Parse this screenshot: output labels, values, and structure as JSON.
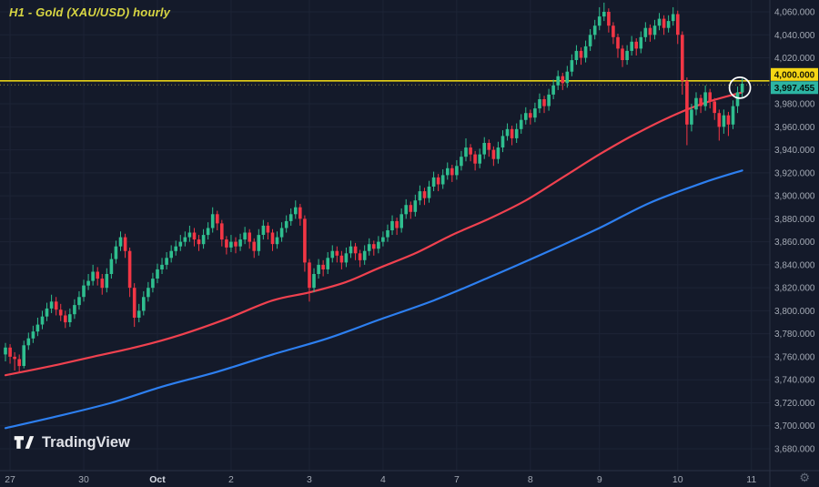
{
  "header": {
    "title": "H1 - Gold (XAU/USD) hourly"
  },
  "watermark": {
    "text": "TradingView"
  },
  "chart_data": {
    "type": "candlestick",
    "title": "H1 - Gold (XAU/USD) hourly",
    "symbol": "Gold (XAU/USD)",
    "timeframe": "H1",
    "last_price": 3997.455,
    "last_price_label": "3,997.455",
    "yellow_level": 4000,
    "yellow_level_label": "4,000.000",
    "price_axis": {
      "max": 4060,
      "min": 3680,
      "step": 20,
      "labels": [
        "4,060.000",
        "4,040.000",
        "4,020.000",
        "4,000.000",
        "3,980.000",
        "3,960.000",
        "3,940.000",
        "3,920.000",
        "3,900.000",
        "3,880.000",
        "3,860.000",
        "3,840.000",
        "3,820.000",
        "3,800.000",
        "3,780.000",
        "3,760.000",
        "3,740.000",
        "3,720.000",
        "3,700.000",
        "3,680.000"
      ]
    },
    "time_axis": {
      "ticks": [
        {
          "i": 1,
          "label": "27"
        },
        {
          "i": 17,
          "label": "30"
        },
        {
          "i": 33,
          "label": "Oct",
          "emph": true
        },
        {
          "i": 49,
          "label": "2"
        },
        {
          "i": 66,
          "label": "3"
        },
        {
          "i": 82,
          "label": "4"
        },
        {
          "i": 98,
          "label": "7"
        },
        {
          "i": 114,
          "label": "8"
        },
        {
          "i": 129,
          "label": "9"
        },
        {
          "i": 146,
          "label": "10"
        },
        {
          "i": 162,
          "label": "11"
        }
      ]
    },
    "candle_format": [
      "open",
      "high",
      "low",
      "close"
    ],
    "candles": [
      [
        3762,
        3772,
        3756,
        3768
      ],
      [
        3768,
        3771,
        3754,
        3760
      ],
      [
        3760,
        3764,
        3748,
        3758
      ],
      [
        3758,
        3762,
        3746,
        3752
      ],
      [
        3752,
        3774,
        3750,
        3770
      ],
      [
        3770,
        3781,
        3766,
        3776
      ],
      [
        3776,
        3787,
        3772,
        3782
      ],
      [
        3782,
        3794,
        3778,
        3788
      ],
      [
        3788,
        3800,
        3784,
        3795
      ],
      [
        3795,
        3807,
        3791,
        3802
      ],
      [
        3802,
        3814,
        3798,
        3808
      ],
      [
        3808,
        3812,
        3796,
        3801
      ],
      [
        3801,
        3806,
        3791,
        3796
      ],
      [
        3796,
        3800,
        3785,
        3790
      ],
      [
        3790,
        3802,
        3786,
        3797
      ],
      [
        3797,
        3810,
        3793,
        3805
      ],
      [
        3805,
        3817,
        3801,
        3812
      ],
      [
        3812,
        3827,
        3808,
        3822
      ],
      [
        3822,
        3832,
        3818,
        3826
      ],
      [
        3826,
        3840,
        3822,
        3834
      ],
      [
        3834,
        3838,
        3822,
        3828
      ],
      [
        3828,
        3832,
        3814,
        3820
      ],
      [
        3820,
        3837,
        3816,
        3832
      ],
      [
        3832,
        3850,
        3828,
        3845
      ],
      [
        3845,
        3861,
        3841,
        3856
      ],
      [
        3856,
        3869,
        3852,
        3864
      ],
      [
        3864,
        3867,
        3846,
        3852
      ],
      [
        3852,
        3855,
        3812,
        3820
      ],
      [
        3820,
        3824,
        3786,
        3794
      ],
      [
        3794,
        3806,
        3790,
        3800
      ],
      [
        3800,
        3817,
        3796,
        3812
      ],
      [
        3812,
        3825,
        3808,
        3820
      ],
      [
        3820,
        3833,
        3816,
        3828
      ],
      [
        3828,
        3841,
        3824,
        3836
      ],
      [
        3836,
        3846,
        3832,
        3840
      ],
      [
        3840,
        3851,
        3836,
        3846
      ],
      [
        3846,
        3857,
        3842,
        3852
      ],
      [
        3852,
        3861,
        3848,
        3856
      ],
      [
        3856,
        3866,
        3852,
        3860
      ],
      [
        3860,
        3869,
        3856,
        3864
      ],
      [
        3864,
        3874,
        3860,
        3868
      ],
      [
        3868,
        3872,
        3856,
        3862
      ],
      [
        3862,
        3866,
        3852,
        3858
      ],
      [
        3858,
        3871,
        3854,
        3866
      ],
      [
        3866,
        3877,
        3862,
        3872
      ],
      [
        3872,
        3890,
        3868,
        3884
      ],
      [
        3884,
        3887,
        3870,
        3876
      ],
      [
        3876,
        3879,
        3856,
        3862
      ],
      [
        3862,
        3865,
        3849,
        3855
      ],
      [
        3855,
        3866,
        3851,
        3860
      ],
      [
        3860,
        3864,
        3850,
        3856
      ],
      [
        3856,
        3867,
        3852,
        3862
      ],
      [
        3862,
        3873,
        3858,
        3868
      ],
      [
        3868,
        3871,
        3854,
        3860
      ],
      [
        3860,
        3863,
        3846,
        3852
      ],
      [
        3852,
        3871,
        3848,
        3866
      ],
      [
        3866,
        3879,
        3862,
        3874
      ],
      [
        3874,
        3877,
        3862,
        3868
      ],
      [
        3868,
        3871,
        3852,
        3858
      ],
      [
        3858,
        3869,
        3854,
        3864
      ],
      [
        3864,
        3877,
        3860,
        3872
      ],
      [
        3872,
        3883,
        3868,
        3878
      ],
      [
        3878,
        3889,
        3874,
        3884
      ],
      [
        3884,
        3896,
        3880,
        3890
      ],
      [
        3890,
        3893,
        3874,
        3880
      ],
      [
        3880,
        3883,
        3834,
        3842
      ],
      [
        3842,
        3845,
        3808,
        3820
      ],
      [
        3820,
        3837,
        3816,
        3832
      ],
      [
        3832,
        3845,
        3828,
        3840
      ],
      [
        3840,
        3844,
        3830,
        3836
      ],
      [
        3836,
        3851,
        3832,
        3846
      ],
      [
        3846,
        3857,
        3842,
        3852
      ],
      [
        3852,
        3856,
        3842,
        3848
      ],
      [
        3848,
        3852,
        3836,
        3842
      ],
      [
        3842,
        3855,
        3838,
        3850
      ],
      [
        3850,
        3861,
        3846,
        3856
      ],
      [
        3856,
        3859,
        3844,
        3850
      ],
      [
        3850,
        3853,
        3838,
        3844
      ],
      [
        3844,
        3857,
        3840,
        3852
      ],
      [
        3852,
        3863,
        3848,
        3858
      ],
      [
        3858,
        3861,
        3848,
        3854
      ],
      [
        3854,
        3865,
        3850,
        3860
      ],
      [
        3860,
        3869,
        3856,
        3864
      ],
      [
        3864,
        3875,
        3860,
        3870
      ],
      [
        3870,
        3883,
        3866,
        3878
      ],
      [
        3878,
        3881,
        3866,
        3872
      ],
      [
        3872,
        3889,
        3868,
        3884
      ],
      [
        3884,
        3897,
        3880,
        3892
      ],
      [
        3892,
        3895,
        3880,
        3886
      ],
      [
        3886,
        3901,
        3882,
        3896
      ],
      [
        3896,
        3909,
        3892,
        3904
      ],
      [
        3904,
        3907,
        3892,
        3898
      ],
      [
        3898,
        3913,
        3894,
        3908
      ],
      [
        3908,
        3921,
        3904,
        3916
      ],
      [
        3916,
        3919,
        3904,
        3910
      ],
      [
        3910,
        3923,
        3906,
        3918
      ],
      [
        3918,
        3929,
        3914,
        3924
      ],
      [
        3924,
        3927,
        3912,
        3918
      ],
      [
        3918,
        3931,
        3914,
        3926
      ],
      [
        3926,
        3939,
        3922,
        3934
      ],
      [
        3934,
        3950,
        3930,
        3942
      ],
      [
        3942,
        3945,
        3930,
        3936
      ],
      [
        3936,
        3939,
        3922,
        3928
      ],
      [
        3928,
        3941,
        3924,
        3936
      ],
      [
        3936,
        3951,
        3932,
        3946
      ],
      [
        3946,
        3949,
        3934,
        3940
      ],
      [
        3940,
        3943,
        3926,
        3932
      ],
      [
        3932,
        3947,
        3928,
        3942
      ],
      [
        3942,
        3957,
        3938,
        3952
      ],
      [
        3952,
        3963,
        3948,
        3958
      ],
      [
        3958,
        3961,
        3944,
        3950
      ],
      [
        3950,
        3963,
        3946,
        3958
      ],
      [
        3958,
        3971,
        3954,
        3966
      ],
      [
        3966,
        3977,
        3962,
        3972
      ],
      [
        3972,
        3975,
        3962,
        3968
      ],
      [
        3968,
        3981,
        3964,
        3976
      ],
      [
        3976,
        3989,
        3972,
        3984
      ],
      [
        3984,
        3987,
        3972,
        3978
      ],
      [
        3978,
        3993,
        3974,
        3988
      ],
      [
        3988,
        4001,
        3984,
        3996
      ],
      [
        3996,
        4009,
        3992,
        4004
      ],
      [
        4004,
        4007,
        3992,
        3998
      ],
      [
        3998,
        4013,
        3994,
        4008
      ],
      [
        4008,
        4023,
        4004,
        4018
      ],
      [
        4018,
        4031,
        4014,
        4026
      ],
      [
        4026,
        4029,
        4014,
        4020
      ],
      [
        4020,
        4035,
        4016,
        4030
      ],
      [
        4030,
        4045,
        4026,
        4040
      ],
      [
        4040,
        4053,
        4036,
        4048
      ],
      [
        4048,
        4064,
        4044,
        4056
      ],
      [
        4056,
        4068,
        4052,
        4060
      ],
      [
        4060,
        4063,
        4042,
        4048
      ],
      [
        4048,
        4051,
        4032,
        4038
      ],
      [
        4038,
        4041,
        4020,
        4028
      ],
      [
        4028,
        4031,
        4012,
        4018
      ],
      [
        4018,
        4031,
        4014,
        4026
      ],
      [
        4026,
        4039,
        4022,
        4034
      ],
      [
        4034,
        4037,
        4022,
        4028
      ],
      [
        4028,
        4043,
        4024,
        4038
      ],
      [
        4038,
        4051,
        4034,
        4046
      ],
      [
        4046,
        4049,
        4034,
        4040
      ],
      [
        4040,
        4053,
        4036,
        4048
      ],
      [
        4048,
        4059,
        4044,
        4054
      ],
      [
        4054,
        4057,
        4040,
        4046
      ],
      [
        4046,
        4057,
        4042,
        4052
      ],
      [
        4052,
        4064,
        4048,
        4058
      ],
      [
        4058,
        4061,
        4032,
        4040
      ],
      [
        4040,
        4043,
        3988,
        4000
      ],
      [
        4000,
        4003,
        3944,
        3962
      ],
      [
        3962,
        3980,
        3956,
        3975
      ],
      [
        3975,
        3990,
        3970,
        3985
      ],
      [
        3985,
        3988,
        3972,
        3978
      ],
      [
        3978,
        3996,
        3974,
        3990
      ],
      [
        3990,
        3993,
        3976,
        3982
      ],
      [
        3982,
        3985,
        3966,
        3972
      ],
      [
        3972,
        3975,
        3948,
        3960
      ],
      [
        3960,
        3975,
        3954,
        3970
      ],
      [
        3970,
        3973,
        3952,
        3962
      ],
      [
        3962,
        3983,
        3958,
        3978
      ],
      [
        3978,
        3995,
        3972,
        3990
      ],
      [
        3990,
        4002,
        3986,
        3997.455
      ]
    ],
    "overlays": {
      "red_ma": [
        [
          0,
          3744
        ],
        [
          10,
          3752
        ],
        [
          19,
          3760
        ],
        [
          29,
          3769
        ],
        [
          38,
          3779
        ],
        [
          48,
          3793
        ],
        [
          58,
          3809
        ],
        [
          66,
          3816
        ],
        [
          74,
          3825
        ],
        [
          81,
          3837
        ],
        [
          89,
          3850
        ],
        [
          97,
          3866
        ],
        [
          105,
          3880
        ],
        [
          113,
          3896
        ],
        [
          121,
          3916
        ],
        [
          129,
          3936
        ],
        [
          136,
          3952
        ],
        [
          144,
          3968
        ],
        [
          152,
          3981
        ],
        [
          160,
          3990
        ]
      ],
      "blue_ma": [
        [
          0,
          3698
        ],
        [
          11,
          3708
        ],
        [
          23,
          3720
        ],
        [
          34,
          3734
        ],
        [
          46,
          3747
        ],
        [
          58,
          3762
        ],
        [
          70,
          3776
        ],
        [
          81,
          3792
        ],
        [
          93,
          3809
        ],
        [
          105,
          3829
        ],
        [
          117,
          3850
        ],
        [
          129,
          3872
        ],
        [
          140,
          3894
        ],
        [
          152,
          3912
        ],
        [
          160,
          3922
        ]
      ]
    },
    "annotation_circle": {
      "i": 159.5,
      "price": 3994,
      "r": 11.5
    },
    "colors": {
      "background": "#141a2a",
      "grid": "#1d2436",
      "axis_text": "#a4aab5",
      "up": "#2fbe8f",
      "down": "#f23645",
      "red_ma": "#f0414f",
      "blue_ma": "#2d7ff0",
      "yellow_line": "#e6d117",
      "yellow_badge_bg": "#f5d615",
      "yellow_badge_text": "#1a1a05",
      "last_badge_bg": "#2cb5a3",
      "last_badge_text": "#04120f",
      "separator": "#2a3144",
      "annotation": "#ffffff"
    }
  }
}
